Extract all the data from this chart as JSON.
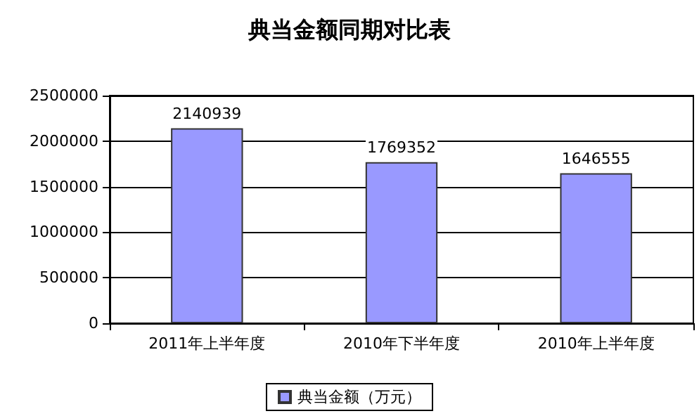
{
  "chart_data": {
    "type": "bar",
    "title": "典当金额同期对比表",
    "categories": [
      "2011年上半年度",
      "2010年下半年度",
      "2010年上半年度"
    ],
    "series": [
      {
        "name": "典当金额（万元）",
        "color": "#9999ff",
        "values": [
          2140939,
          1769352,
          1646555
        ]
      }
    ],
    "ylim": [
      0,
      2500000
    ],
    "yticks": [
      0,
      500000,
      1000000,
      1500000,
      2000000,
      2500000
    ],
    "grid": "y",
    "legend": "bottom",
    "data_labels": true
  }
}
